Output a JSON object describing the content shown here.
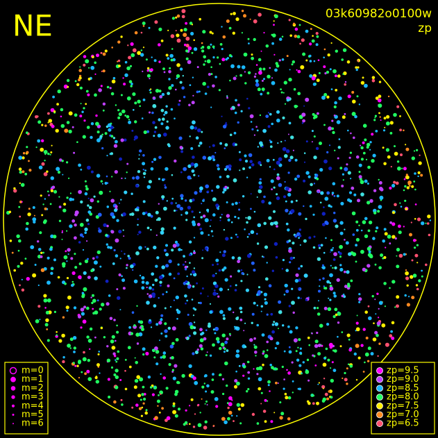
{
  "header": {
    "title": "NE",
    "image_id": "03k60982o0100w",
    "mode": "zp"
  },
  "legend_m": {
    "items": [
      "m=0",
      "m=1",
      "m=2",
      "m=3",
      "m=4",
      "m=5",
      "m=6"
    ],
    "color": "#ff00ff"
  },
  "legend_zp": {
    "items": [
      {
        "label": "zp=9.5",
        "color": "#ff00ff"
      },
      {
        "label": "zp=9.0",
        "color": "#c040ff"
      },
      {
        "label": "zp=8.5",
        "color": "#1ab8ff"
      },
      {
        "label": "zp=8.0",
        "color": "#20ff60"
      },
      {
        "label": "zp=7.5",
        "color": "#ffee00"
      },
      {
        "label": "zp=7.0",
        "color": "#ff8a20"
      },
      {
        "label": "zp=6.5",
        "color": "#ff5070"
      }
    ]
  },
  "frame_color": "#ffff00"
}
